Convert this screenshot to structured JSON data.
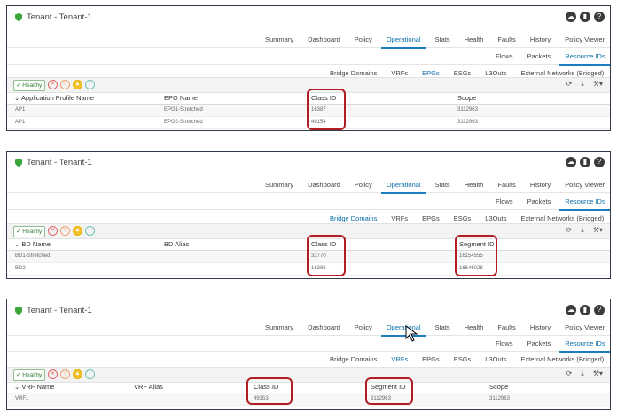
{
  "panels": [
    {
      "tenant_title": "Tenant - Tenant-1",
      "tabs1": [
        "Summary",
        "Dashboard",
        "Policy",
        "Operational",
        "Stats",
        "Health",
        "Faults",
        "History",
        "Policy Viewer"
      ],
      "tabs1_active": 3,
      "tabs2": [
        "Flows",
        "Packets",
        "Resource IDs"
      ],
      "tabs2_active": 2,
      "tabs3": [
        "Bridge Domains",
        "VRFs",
        "EPGs",
        "ESGs",
        "L3Outs",
        "External Networks (Bridged)"
      ],
      "tabs3_active": 2,
      "healthy": "Healthy",
      "columns": [
        "Application Profile Name",
        "EPG Name",
        "Class ID",
        "Scope"
      ],
      "rows": [
        [
          "AP1",
          "EPG1-Stretched",
          "16387",
          "3112963"
        ],
        [
          "AP1",
          "EPG2-Stretched",
          "49154",
          "3112963"
        ]
      ]
    },
    {
      "tenant_title": "Tenant - Tenant-1",
      "tabs1": [
        "Summary",
        "Dashboard",
        "Policy",
        "Operational",
        "Stats",
        "Health",
        "Faults",
        "History",
        "Policy Viewer"
      ],
      "tabs1_active": 3,
      "tabs2": [
        "Flows",
        "Packets",
        "Resource IDs"
      ],
      "tabs2_active": 2,
      "tabs3": [
        "Bridge Domains",
        "VRFs",
        "EPGs",
        "ESGs",
        "L3Outs",
        "External Networks (Bridged)"
      ],
      "tabs3_active": 0,
      "healthy": "Healthy",
      "columns": [
        "BD Name",
        "BD Alias",
        "Class ID",
        "Segment ID"
      ],
      "rows": [
        [
          "BD1-Stretched",
          "",
          "32770",
          "16154555"
        ],
        [
          "BD2",
          "",
          "16386",
          "16646028"
        ]
      ]
    },
    {
      "tenant_title": "Tenant - Tenant-1",
      "tabs1": [
        "Summary",
        "Dashboard",
        "Policy",
        "Operational",
        "Stats",
        "Health",
        "Faults",
        "History",
        "Policy Viewer"
      ],
      "tabs1_active": 3,
      "tabs2": [
        "Flows",
        "Packets",
        "Resource IDs"
      ],
      "tabs2_active": 2,
      "tabs3": [
        "Bridge Domains",
        "VRFs",
        "EPGs",
        "ESGs",
        "L3Outs",
        "External Networks (Bridged)"
      ],
      "tabs3_active": 1,
      "healthy": "Healthy",
      "columns": [
        "VRF Name",
        "VRF Alias",
        "Class ID",
        "Segment ID",
        "Scope"
      ],
      "rows": [
        [
          "VRF1",
          "",
          "49153",
          "3112963",
          "3112963"
        ]
      ]
    }
  ],
  "colors": {
    "accent": "#1c7cc0",
    "highlight": "#b01e24",
    "healthy": "#2e7d32"
  },
  "icons": {
    "tenant": "shield-icon",
    "toolbar": [
      "cloud-icon",
      "bookmark-icon",
      "help-icon"
    ],
    "tools": [
      "refresh-icon",
      "download-icon",
      "wrench-icon"
    ]
  }
}
